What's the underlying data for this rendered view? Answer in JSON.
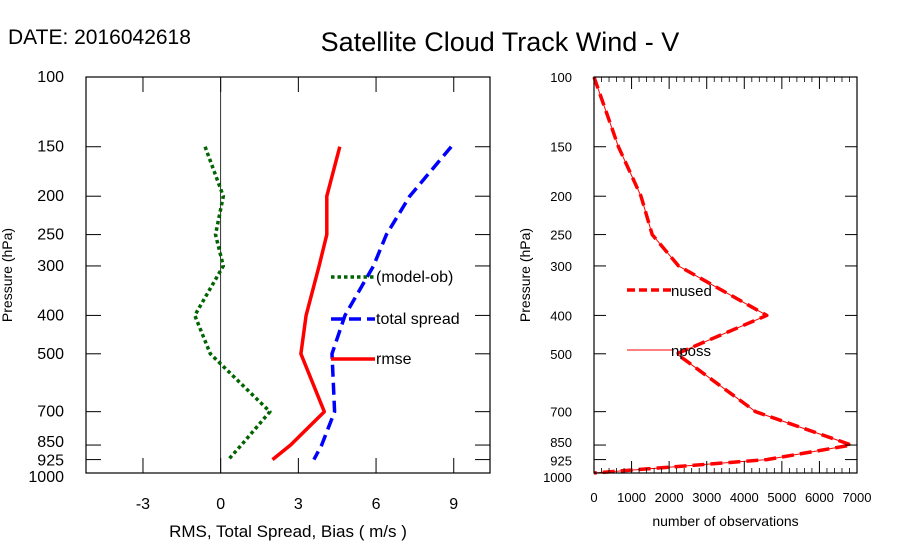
{
  "header": {
    "date_label": "DATE: 2016042618",
    "title": "Satellite Cloud Track Wind - V"
  },
  "chart_data": [
    {
      "type": "line",
      "panel": "left",
      "title": "Satellite Cloud Track Wind - V",
      "xlabel": "RMS, Total Spread, Bias ( m/s )",
      "ylabel": "Pressure (hPa)",
      "y_scale": "log",
      "y_reversed": true,
      "xlim": [
        -5.2,
        10.4
      ],
      "ylim": [
        100,
        1000
      ],
      "x_ticks": [
        -3,
        0,
        3,
        6,
        9
      ],
      "x_tick_labels": [
        "-3",
        "0",
        "3",
        "6",
        "9"
      ],
      "y_ticks": [
        100,
        150,
        200,
        250,
        300,
        400,
        500,
        700,
        850,
        925,
        1000
      ],
      "y_tick_labels": [
        "100",
        "150",
        "200",
        "250",
        "300",
        "400",
        "500",
        "700",
        "850",
        "925",
        "1000"
      ],
      "zero_line": 0,
      "series": [
        {
          "name": "(model-ob)",
          "color": "#006400",
          "dash": "dotted",
          "points": [
            {
              "p": 150,
              "v": -0.6
            },
            {
              "p": 200,
              "v": 0.1
            },
            {
              "p": 250,
              "v": -0.2
            },
            {
              "p": 300,
              "v": 0.1
            },
            {
              "p": 400,
              "v": -1.0
            },
            {
              "p": 500,
              "v": -0.4
            },
            {
              "p": 700,
              "v": 1.9
            },
            {
              "p": 850,
              "v": 0.8
            },
            {
              "p": 925,
              "v": 0.3
            }
          ]
        },
        {
          "name": "total spread",
          "color": "#0000ff",
          "dash": "dashed",
          "points": [
            {
              "p": 150,
              "v": 8.9
            },
            {
              "p": 200,
              "v": 7.3
            },
            {
              "p": 250,
              "v": 6.4
            },
            {
              "p": 300,
              "v": 5.9
            },
            {
              "p": 400,
              "v": 4.8
            },
            {
              "p": 500,
              "v": 4.3
            },
            {
              "p": 700,
              "v": 4.4
            },
            {
              "p": 850,
              "v": 3.9
            },
            {
              "p": 925,
              "v": 3.6
            }
          ]
        },
        {
          "name": "rmse",
          "color": "#ff0000",
          "dash": "solid",
          "points": [
            {
              "p": 150,
              "v": 4.6
            },
            {
              "p": 200,
              "v": 4.1
            },
            {
              "p": 250,
              "v": 4.1
            },
            {
              "p": 300,
              "v": 3.8
            },
            {
              "p": 400,
              "v": 3.3
            },
            {
              "p": 500,
              "v": 3.1
            },
            {
              "p": 700,
              "v": 4.0
            },
            {
              "p": 850,
              "v": 2.7
            },
            {
              "p": 925,
              "v": 2.0
            }
          ]
        }
      ],
      "legend": [
        "(model-ob)",
        "total spread",
        "rmse"
      ]
    },
    {
      "type": "line",
      "panel": "right",
      "xlabel": "number of observations",
      "ylabel": "Pressure (hPa)",
      "y_scale": "log",
      "y_reversed": true,
      "xlim": [
        0,
        7000
      ],
      "ylim": [
        100,
        1000
      ],
      "x_ticks": [
        0,
        1000,
        2000,
        3000,
        4000,
        5000,
        6000,
        7000
      ],
      "x_tick_labels": [
        "0",
        "1000",
        "2000",
        "3000",
        "4000",
        "5000",
        "6000",
        "7000"
      ],
      "y_ticks": [
        100,
        150,
        200,
        250,
        300,
        400,
        500,
        700,
        850,
        925,
        1000
      ],
      "y_tick_labels": [
        "100",
        "150",
        "200",
        "250",
        "300",
        "400",
        "500",
        "700",
        "850",
        "925",
        "1000"
      ],
      "series": [
        {
          "name": "nused",
          "color": "#ff0000",
          "dash": "dashed",
          "points": [
            {
              "p": 100,
              "v": 0
            },
            {
              "p": 150,
              "v": 650
            },
            {
              "p": 200,
              "v": 1250
            },
            {
              "p": 250,
              "v": 1550
            },
            {
              "p": 300,
              "v": 2250
            },
            {
              "p": 400,
              "v": 4600
            },
            {
              "p": 500,
              "v": 2200
            },
            {
              "p": 700,
              "v": 4300
            },
            {
              "p": 850,
              "v": 6850
            },
            {
              "p": 925,
              "v": 4600
            },
            {
              "p": 1000,
              "v": 0
            }
          ]
        },
        {
          "name": "nposs",
          "color": "#ff0000",
          "dash": "thin",
          "points": [
            {
              "p": 100,
              "v": 0
            },
            {
              "p": 150,
              "v": 650
            },
            {
              "p": 200,
              "v": 1250
            },
            {
              "p": 250,
              "v": 1550
            },
            {
              "p": 300,
              "v": 2250
            },
            {
              "p": 400,
              "v": 4600
            },
            {
              "p": 500,
              "v": 2200
            },
            {
              "p": 700,
              "v": 4300
            },
            {
              "p": 850,
              "v": 6850
            },
            {
              "p": 925,
              "v": 4600
            },
            {
              "p": 1000,
              "v": 0
            }
          ]
        }
      ],
      "legend": [
        "nused",
        "nposs"
      ]
    }
  ]
}
